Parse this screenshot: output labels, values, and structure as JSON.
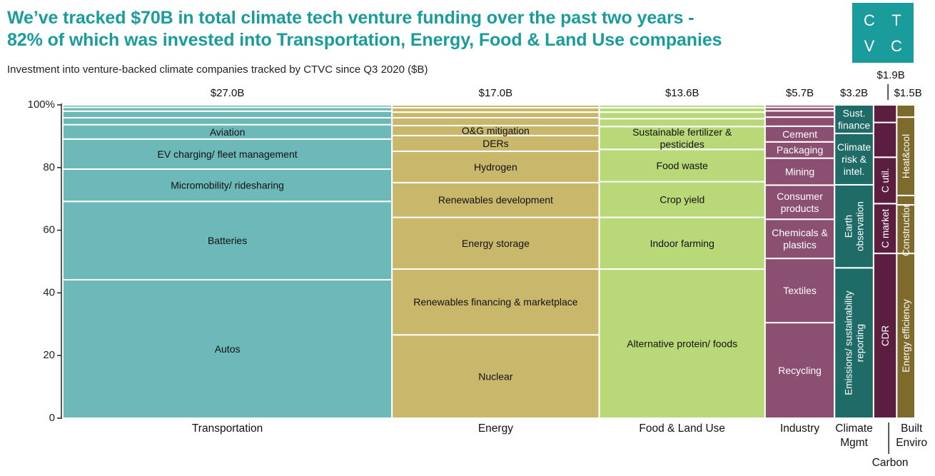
{
  "header": {
    "title_line1": "We’ve tracked $70B in total climate tech venture funding over the past two years -",
    "title_line2": "82% of which was invested into Transportation, Energy, Food & Land Use companies",
    "subtitle": "Investment into venture-backed climate companies tracked by CTVC since Q3 2020 ($B)"
  },
  "logo": {
    "letters": [
      "C",
      "T",
      "V",
      "C"
    ]
  },
  "colors": {
    "accent": "#1a9c9c"
  },
  "chart_data": {
    "type": "mekko",
    "title": "Investment into venture-backed climate companies tracked by CTVC since Q3 2020 ($B)",
    "ylim": [
      0,
      100
    ],
    "y_ticks": [
      "0",
      "20",
      "40",
      "60",
      "80",
      "100%"
    ],
    "sectors": [
      {
        "name": "Transportation",
        "total": 27.0,
        "total_label": "$27.0B",
        "color": "#6db8b8",
        "text_color": "#111",
        "segments": [
          {
            "label": "Autos",
            "share": 44.2
          },
          {
            "label": "Batteries",
            "share": 25.0
          },
          {
            "label": "Micromobility/ ridesharing",
            "share": 10.3
          },
          {
            "label": "EV charging/ fleet management",
            "share": 9.6
          },
          {
            "label": "Aviation",
            "share": 4.6
          },
          {
            "label": "",
            "share": 2.2
          },
          {
            "label": "",
            "share": 2.1
          },
          {
            "label": "",
            "share": 1.2
          },
          {
            "label": "",
            "share": 0.8
          }
        ]
      },
      {
        "name": "Energy",
        "total": 17.0,
        "total_label": "$17.0B",
        "color": "#c9b86b",
        "text_color": "#111",
        "segments": [
          {
            "label": "Nuclear",
            "share": 26.6
          },
          {
            "label": "Renewables financing & marketplace",
            "share": 21.0
          },
          {
            "label": "Energy storage",
            "share": 16.5
          },
          {
            "label": "Renewables development",
            "share": 11.1
          },
          {
            "label": "Hydrogen",
            "share": 10.0
          },
          {
            "label": "DERs",
            "share": 5.0
          },
          {
            "label": "O&G mitigation",
            "share": 3.2
          },
          {
            "label": "",
            "share": 2.5
          },
          {
            "label": "",
            "share": 1.8
          },
          {
            "label": "",
            "share": 1.4
          },
          {
            "label": "",
            "share": 0.9
          }
        ]
      },
      {
        "name": "Food & Land Use",
        "total": 13.6,
        "total_label": "$13.6B",
        "color": "#b9d878",
        "text_color": "#111",
        "segments": [
          {
            "label": "Alternative protein/ foods",
            "share": 47.6
          },
          {
            "label": "Indoor farming",
            "share": 16.5
          },
          {
            "label": "Crop yield",
            "share": 11.4
          },
          {
            "label": "Food waste",
            "share": 10.3
          },
          {
            "label": "Sustainable fertilizer & pesticides",
            "share": 7.3
          },
          {
            "label": "",
            "share": 2.5
          },
          {
            "label": "",
            "share": 2.1
          },
          {
            "label": "",
            "share": 1.4
          },
          {
            "label": "",
            "share": 0.9
          }
        ]
      },
      {
        "name": "Industry",
        "total": 5.7,
        "total_label": "$5.7B",
        "color": "#8b4f72",
        "text_color": "#ffffff",
        "segments": [
          {
            "label": "Recycling",
            "share": 30.5
          },
          {
            "label": "Textiles",
            "share": 20.5
          },
          {
            "label": "Chemicals & plastics",
            "share": 12.5
          },
          {
            "label": "Consumer products",
            "share": 10.9
          },
          {
            "label": "Mining",
            "share": 8.6
          },
          {
            "label": "Packaging",
            "share": 5.2
          },
          {
            "label": "Cement",
            "share": 5.0
          },
          {
            "label": "",
            "share": 2.9
          },
          {
            "label": "",
            "share": 2.0
          },
          {
            "label": "",
            "share": 1.1
          },
          {
            "label": "",
            "share": 0.8
          }
        ]
      },
      {
        "name": "Climate Mgmt",
        "total": 3.2,
        "total_label": "$3.2B",
        "color": "#1f6b68",
        "text_color": "#ffffff",
        "segments": [
          {
            "label": "Emissions/ sustainability reporting",
            "share": 48.0,
            "rotate": true
          },
          {
            "label": "Earth observation",
            "share": 26.5,
            "rotate": true
          },
          {
            "label": "Climate risk & intel.",
            "share": 16.4
          },
          {
            "label": "Sust. finance",
            "share": 9.1
          }
        ]
      },
      {
        "name": "Carbon",
        "total": 1.9,
        "total_label": "$1.9B",
        "color": "#5c1e40",
        "text_color": "#ffffff",
        "segments": [
          {
            "label": "CDR",
            "share": 52.6,
            "rotate": true
          },
          {
            "label": "C market",
            "share": 15.9,
            "rotate": true
          },
          {
            "label": "C util.",
            "share": 14.8,
            "rotate": true
          },
          {
            "label": "",
            "share": 11.1
          },
          {
            "label": "",
            "share": 5.6
          }
        ]
      },
      {
        "name": "Built Enviro",
        "total": 1.5,
        "total_label": "$1.5B",
        "color": "#7e6a2a",
        "text_color": "#ffffff",
        "segments": [
          {
            "label": "Energy efficiency",
            "share": 52.6,
            "rotate": true
          },
          {
            "label": "Construction",
            "share": 15.5,
            "rotate": true
          },
          {
            "label": "",
            "share": 3.0
          },
          {
            "label": "Heat&cool",
            "share": 25.0,
            "rotate": true
          },
          {
            "label": "",
            "share": 3.9
          }
        ]
      }
    ]
  }
}
